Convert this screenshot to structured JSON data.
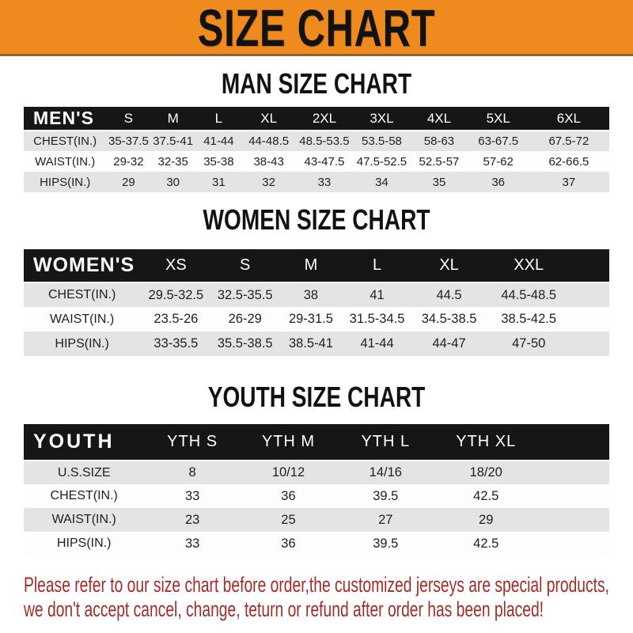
{
  "banner": {
    "title": "SIZE CHART",
    "bg": "#ee8a1e"
  },
  "sections": [
    {
      "heading": "MAN SIZE CHART",
      "table": {
        "header_label": "MEN'S",
        "columns": [
          "S",
          "M",
          "L",
          "XL",
          "2XL",
          "3XL",
          "4XL",
          "5XL",
          "6XL"
        ],
        "rows": [
          {
            "label": "CHEST(IN.)",
            "values": [
              "35-37.5",
              "37.5-41",
              "41-44",
              "44-48.5",
              "48.5-53.5",
              "53.5-58",
              "58-63",
              "63-67.5",
              "67.5-72"
            ]
          },
          {
            "label": "WAIST(IN.)",
            "values": [
              "29-32",
              "32-35",
              "35-38",
              "38-43",
              "43-47.5",
              "47.5-52.5",
              "52.5-57",
              "57-62",
              "62-66.5"
            ]
          },
          {
            "label": "HIPS(IN.)",
            "values": [
              "29",
              "30",
              "31",
              "32",
              "33",
              "34",
              "35",
              "36",
              "37"
            ]
          }
        ]
      }
    },
    {
      "heading": "WOMEN SIZE CHART",
      "table": {
        "header_label": "WOMEN'S",
        "columns": [
          "XS",
          "S",
          "M",
          "L",
          "XL",
          "XXL"
        ],
        "rows": [
          {
            "label": "CHEST(IN.)",
            "values": [
              "29.5-32.5",
              "32.5-35.5",
              "38",
              "41",
              "44.5",
              "44.5-48.5"
            ]
          },
          {
            "label": "WAIST(IN.)",
            "values": [
              "23.5-26",
              "26-29",
              "29-31.5",
              "31.5-34.5",
              "34.5-38.5",
              "38.5-42.5"
            ]
          },
          {
            "label": "HIPS(IN.)",
            "values": [
              "33-35.5",
              "35.5-38.5",
              "38.5-41",
              "41-44",
              "44-47",
              "47-50"
            ]
          }
        ]
      }
    },
    {
      "heading": "YOUTH SIZE CHART",
      "table": {
        "header_label": "YOUTH",
        "columns": [
          "YTH S",
          "YTH M",
          "YTH L",
          "YTH XL"
        ],
        "rows": [
          {
            "label": "U.S.SIZE",
            "values": [
              "8",
              "10/12",
              "14/16",
              "18/20"
            ]
          },
          {
            "label": "CHEST(IN.)",
            "values": [
              "33",
              "36",
              "39.5",
              "42.5"
            ]
          },
          {
            "label": "WAIST(IN.)",
            "values": [
              "23",
              "25",
              "27",
              "29"
            ]
          },
          {
            "label": "HIPS(IN.)",
            "values": [
              "33",
              "36",
              "39.5",
              "42.5"
            ]
          }
        ]
      }
    }
  ],
  "footer": {
    "line1": "Please refer to our size chart before order,the customized jerseys are special products,",
    "line2": "we don't accept cancel, change, teturn or refund after order has been placed!",
    "color": "#a32c28"
  }
}
